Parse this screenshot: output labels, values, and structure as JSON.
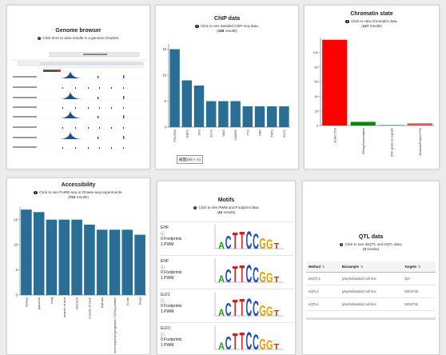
{
  "genome": {
    "title": "Genome browser",
    "subtitle": "Click here to view results in a genome browser."
  },
  "chip": {
    "title": "ChIP data",
    "subtitle_pre": "Click to see detailed ChIP-seq data.",
    "count": "188",
    "count_suffix": "results",
    "tooltip": "截图(Alt + A)",
    "chart_data": {
      "type": "bar",
      "categories": [
        "POLR2A",
        "EBF1",
        "ZFX",
        "ELF1",
        "MAX",
        "GABPA",
        "YY1",
        "SRF",
        "TAF1",
        "ELF1"
      ],
      "values": [
        15,
        9,
        8,
        5,
        5,
        5,
        4,
        4,
        4,
        4
      ],
      "ylim": [
        0,
        16
      ],
      "yticks": [
        0,
        5,
        10,
        15
      ],
      "color": "#2a6e96"
    }
  },
  "chromatin": {
    "title": "Chromatin state",
    "subtitle_pre": "Click to view chromatin data.",
    "count": "127",
    "count_suffix": "results",
    "chart_data": {
      "type": "bar",
      "categories": [
        "Active TSS",
        "Strong transcription",
        "ZNF genes & repeats",
        "Bivalent/Poised TSS"
      ],
      "values": [
        117,
        5,
        1,
        3
      ],
      "colors": [
        "#ff0000",
        "#0a8a0a",
        "#67b0a8",
        "#d95c5c"
      ],
      "ylim": [
        0,
        120
      ],
      "yticks": [
        0,
        20,
        40,
        60,
        80,
        100
      ]
    }
  },
  "access": {
    "title": "Accessibility",
    "subtitle_pre": "Click to see FAIRE-seq or DNase-seq experiments.",
    "count": "723",
    "count_suffix": "results",
    "chart_data": {
      "type": "bar",
      "categories": [
        "kidney",
        "placenta",
        "lung",
        "muscle of arm",
        "stomach",
        "muscle of back",
        "thymus",
        "common myeloid progenitor, CD34-positive",
        "B cell",
        "heart"
      ],
      "values": [
        17,
        16.5,
        15,
        15,
        15,
        14,
        13,
        13,
        13,
        12
      ],
      "ylim": [
        0,
        17.5
      ],
      "yticks": [
        0,
        5,
        10,
        15
      ],
      "color": "#2a6e96"
    }
  },
  "motifs": {
    "title": "Motifs",
    "subtitle_pre": "Click to see PWM and Footprint data.",
    "count": "42",
    "count_suffix": "results",
    "items": [
      {
        "name": "EHF",
        "footprints": "0 Footprints",
        "pwm": "1 PWM"
      },
      {
        "name": "EHF",
        "footprints": "0 Footprints",
        "pwm": "1 PWM"
      },
      {
        "name": "ELF1",
        "footprints": "0 Footprints",
        "pwm": "1 PWM"
      },
      {
        "name": "ELF3",
        "footprints": "0 Footprints",
        "pwm": "1 PWM"
      }
    ]
  },
  "qtl": {
    "title": "QTL data",
    "subtitle_pre": "Click to see dsQTL and eQTL data.",
    "count": "3",
    "count_suffix": "results",
    "columns": [
      "Method",
      "Biosample",
      "Targets"
    ],
    "rows": [
      [
        "dsQTLs",
        "lymphoblastoid cell line",
        "N/A"
      ],
      [
        "eQTLs",
        "lymphoblastoid cell line",
        "NDUFS5"
      ],
      [
        "eQTLs",
        "lymphoblastoid cell line",
        "NDUFS5"
      ]
    ]
  }
}
